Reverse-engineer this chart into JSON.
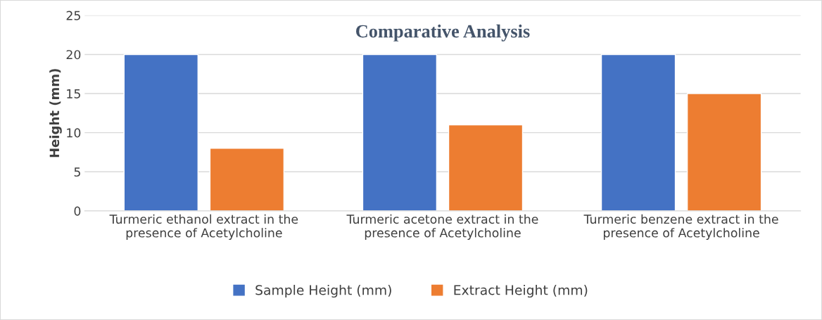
{
  "chart_data": {
    "type": "bar",
    "title": "Comparative Analysis",
    "ylabel": "Height (mm)",
    "categories": [
      "Turmeric ethanol extract in the\npresence of Acetylcholine",
      "Turmeric acetone extract in the\npresence of Acetylcholine",
      "Turmeric benzene extract in the\npresence of Acetylcholine"
    ],
    "series": [
      {
        "name": "Sample Height (mm)",
        "color": "#4472c4",
        "values": [
          20,
          20,
          20
        ]
      },
      {
        "name": "Extract Height (mm)",
        "color": "#ed7d31",
        "values": [
          8,
          11,
          15
        ]
      }
    ],
    "ylim": [
      0,
      25
    ],
    "yticks": [
      0,
      5,
      10,
      15,
      20,
      25
    ],
    "grid": "y",
    "legend": "bottom"
  }
}
